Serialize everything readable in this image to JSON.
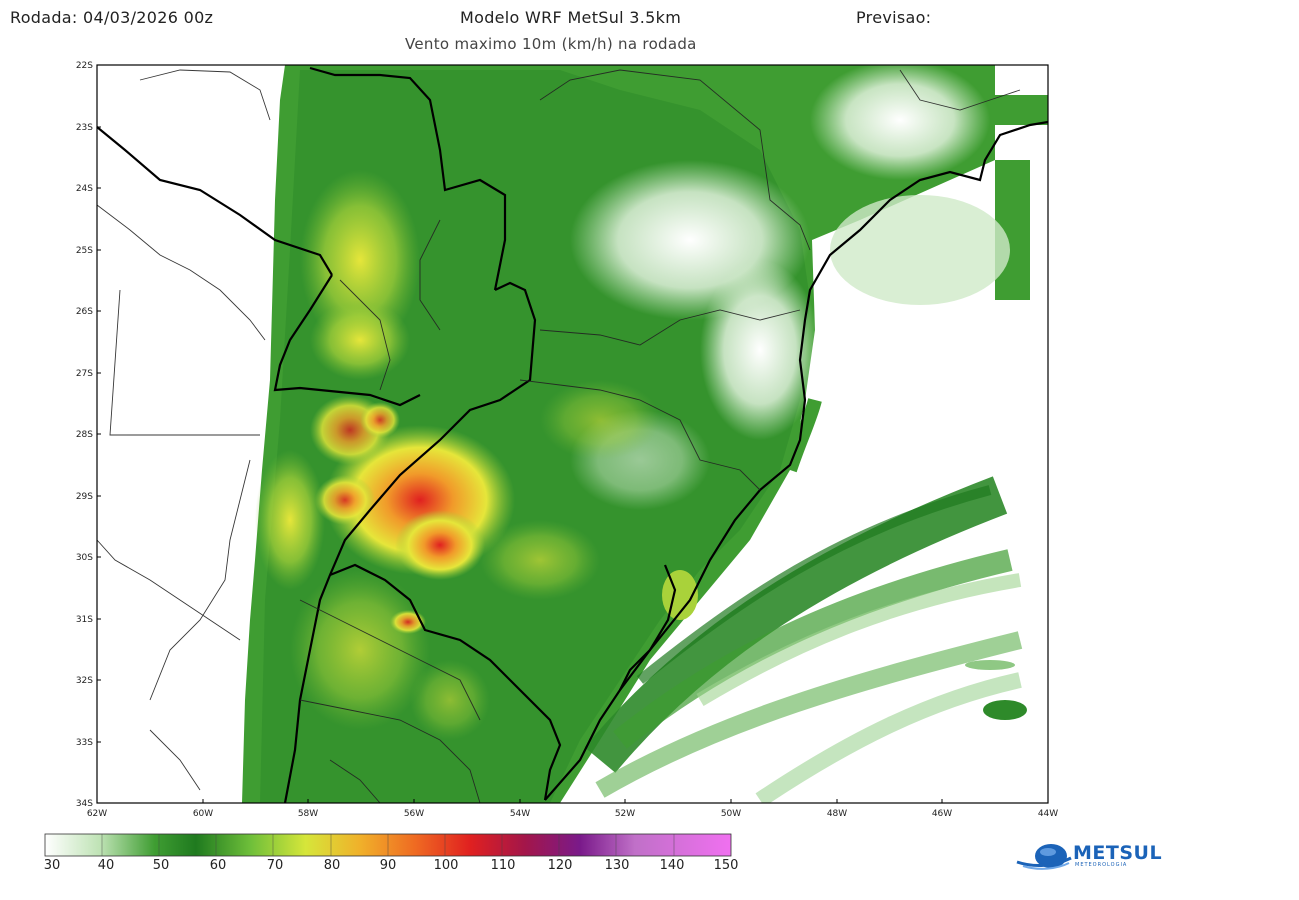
{
  "header": {
    "run": "Rodada: 04/03/2026 00z",
    "title": "Modelo WRF MetSul 3.5km",
    "forecast": "Previsao:",
    "subtitle": "Vento maximo 10m (km/h) na rodada"
  },
  "map": {
    "lat_labels": [
      "22S",
      "23S",
      "24S",
      "25S",
      "26S",
      "27S",
      "28S",
      "29S",
      "30S",
      "31S",
      "32S",
      "33S",
      "34S"
    ],
    "lon_labels": [
      "62W",
      "60W",
      "58W",
      "56W",
      "54W",
      "52W",
      "50W",
      "48W",
      "46W",
      "44W"
    ],
    "lat_range": [
      -34,
      -22
    ],
    "lon_range": [
      -62,
      -44
    ]
  },
  "colorbar": {
    "ticks": [
      "30",
      "40",
      "50",
      "60",
      "70",
      "80",
      "90",
      "100",
      "110",
      "120",
      "130",
      "140",
      "150"
    ],
    "units": "km/h",
    "range": [
      30,
      150
    ]
  },
  "logo": {
    "text": "METSUL",
    "subtext": "METEOROLOGIA"
  },
  "colors": {
    "land_green": "#3f9d32",
    "dark_green": "#1f7a1f",
    "light_green": "#bfe3b5",
    "yellow": "#e6e63a",
    "orange": "#f19a2a",
    "red": "#e02020",
    "logo_blue": "#1b63b8"
  }
}
